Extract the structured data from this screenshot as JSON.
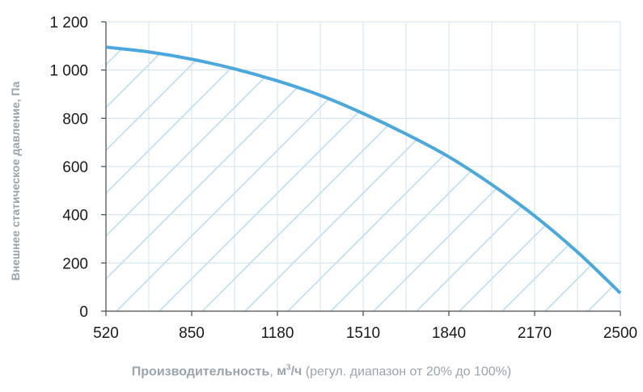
{
  "chart_data": {
    "type": "area",
    "ylabel": "Внешнее статическое давление, Па",
    "xlabel_bold": "Производительность",
    "xlabel_sep": ", ",
    "xlabel_unit_base": "м",
    "xlabel_unit_sup": "3",
    "xlabel_unit_tail": "/ч",
    "xlabel_note": " (регул. диапазон от 20% до 100%)",
    "x_ticks": [
      "520",
      "850",
      "1180",
      "1510",
      "1840",
      "2170",
      "2500"
    ],
    "y_ticks": [
      "0",
      "200",
      "400",
      "600",
      "800",
      "1 000",
      "1 200"
    ],
    "xlim": [
      520,
      2500
    ],
    "ylim": [
      0,
      1200
    ],
    "grid": true,
    "hatched_fill": true,
    "colors": {
      "line": "#4aa8dc",
      "hatch": "#c9e2f1",
      "grid": "#cfe3ef",
      "axis": "#4a4a4a"
    },
    "series": [
      {
        "x": [
          520,
          685,
          850,
          1015,
          1180,
          1345,
          1510,
          1675,
          1840,
          2005,
          2170,
          2335,
          2500
        ],
        "y": [
          1095,
          1075,
          1045,
          1005,
          955,
          895,
          820,
          735,
          640,
          525,
          395,
          245,
          75
        ]
      }
    ]
  }
}
